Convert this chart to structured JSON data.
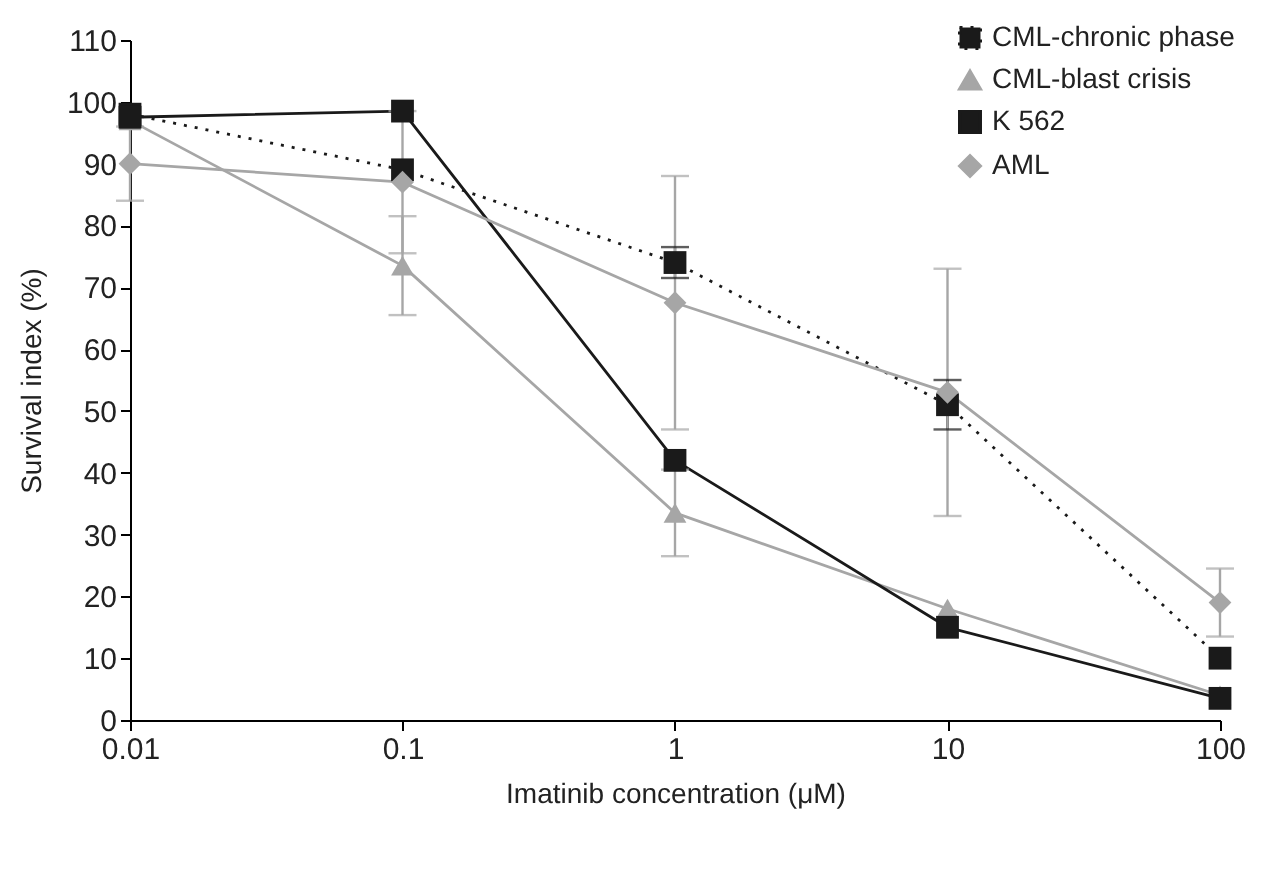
{
  "chart_data": {
    "type": "line",
    "xlabel": "Imatinib concentration (μM)",
    "ylabel": "Survival index (%)",
    "log": "x",
    "grid": false,
    "legend": "top right",
    "xlim": [
      0.01,
      100
    ],
    "xticks": [
      0.01,
      0.1,
      1,
      10,
      100
    ],
    "ylim": [
      0,
      110
    ],
    "yticks": [
      0,
      10,
      20,
      30,
      40,
      50,
      60,
      70,
      80,
      90,
      100,
      110
    ],
    "x": [
      0.01,
      0.1,
      1,
      10,
      100
    ],
    "series": [
      {
        "name": "CML-chronic phase",
        "color": "#1a1a1a",
        "marker": "square",
        "line_style": "dotted",
        "values": [
          98,
          89,
          74,
          51,
          10
        ],
        "errors": [
          null,
          null,
          2.5,
          4,
          null
        ]
      },
      {
        "name": "CML-blast crisis",
        "color": "#a6a6a6",
        "marker": "triangle",
        "line_style": "solid",
        "values": [
          97,
          73.5,
          33.5,
          18,
          4
        ],
        "errors": [
          null,
          8,
          7,
          null,
          null
        ]
      },
      {
        "name": "K 562",
        "color": "#1a1a1a",
        "marker": "square",
        "line_style": "solid",
        "values": [
          97.5,
          98.5,
          42,
          15,
          3.5
        ]
      },
      {
        "name": "AML",
        "color": "#a6a6a6",
        "marker": "diamond",
        "line_style": "solid",
        "values": [
          90,
          87,
          67.5,
          53,
          19
        ],
        "errors": [
          6,
          11.5,
          20.5,
          20,
          5.5
        ]
      }
    ]
  }
}
